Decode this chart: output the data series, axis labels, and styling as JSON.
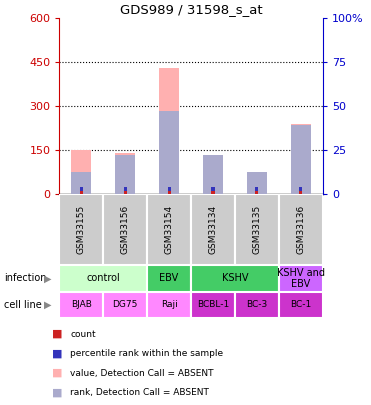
{
  "title": "GDS989 / 31598_s_at",
  "samples": [
    "GSM33155",
    "GSM33156",
    "GSM33154",
    "GSM33134",
    "GSM33135",
    "GSM33136"
  ],
  "pink_bar_heights": [
    150,
    140,
    430,
    135,
    75,
    240
  ],
  "blue_bar_heights": [
    75,
    135,
    285,
    135,
    75,
    235
  ],
  "ylim_left": [
    0,
    600
  ],
  "ylim_right": [
    0,
    100
  ],
  "yticks_left": [
    0,
    150,
    300,
    450,
    600
  ],
  "yticks_right": [
    0,
    25,
    50,
    75,
    100
  ],
  "ytick_right_labels": [
    "0",
    "25",
    "50",
    "75",
    "100%"
  ],
  "pink_color": "#ffb0b0",
  "blue_color": "#aaaacc",
  "red_sq_color": "#cc2222",
  "blue_sq_color": "#3333bb",
  "axis_color_left": "#cc0000",
  "axis_color_right": "#0000cc",
  "grid_dotted_at": [
    150,
    300,
    450
  ],
  "bar_width": 0.45,
  "infection_groups": [
    {
      "label": "control",
      "cols": [
        0,
        1
      ],
      "color": "#ccffcc"
    },
    {
      "label": "EBV",
      "cols": [
        2
      ],
      "color": "#44cc66"
    },
    {
      "label": "KSHV",
      "cols": [
        3,
        4
      ],
      "color": "#44cc66"
    },
    {
      "label": "KSHV and\nEBV",
      "cols": [
        5
      ],
      "color": "#cc66ff"
    }
  ],
  "cell_lines": [
    {
      "label": "BJAB",
      "col": 0,
      "color": "#ff88ff"
    },
    {
      "label": "DG75",
      "col": 1,
      "color": "#ff88ff"
    },
    {
      "label": "Raji",
      "col": 2,
      "color": "#ff88ff"
    },
    {
      "label": "BCBL-1",
      "col": 3,
      "color": "#cc33cc"
    },
    {
      "label": "BC-3",
      "col": 4,
      "color": "#cc33cc"
    },
    {
      "label": "BC-1",
      "col": 5,
      "color": "#cc33cc"
    }
  ],
  "legend_items": [
    {
      "color": "#cc2222",
      "label": "count"
    },
    {
      "color": "#3333bb",
      "label": "percentile rank within the sample"
    },
    {
      "color": "#ffb0b0",
      "label": "value, Detection Call = ABSENT"
    },
    {
      "color": "#aaaacc",
      "label": "rank, Detection Call = ABSENT"
    }
  ],
  "sample_label_color": "#cccccc",
  "n_samples": 6
}
